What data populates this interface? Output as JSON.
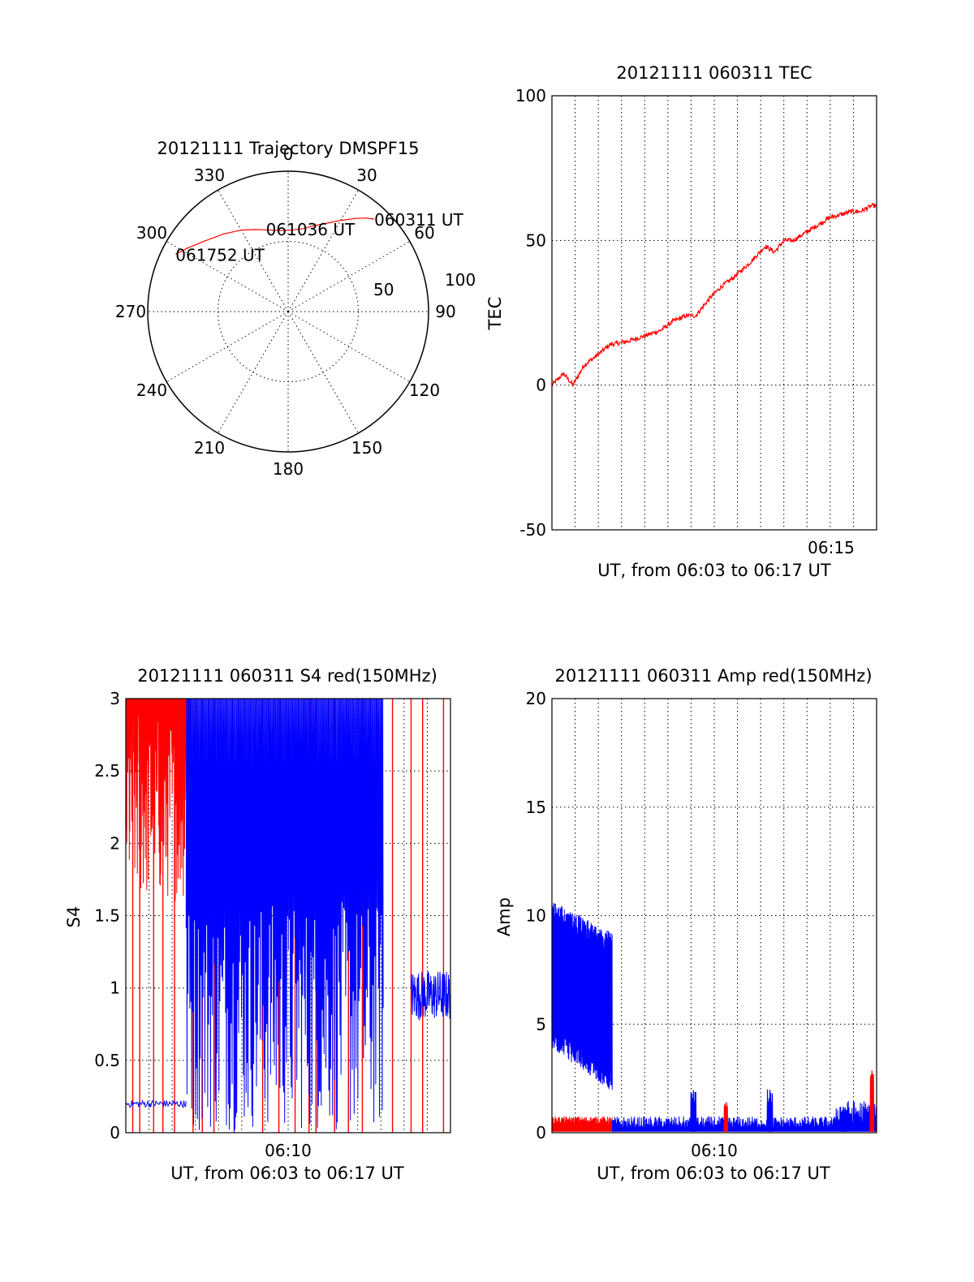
{
  "colors": {
    "red": "#ff0000",
    "blue": "#0000ff",
    "axis": "#000000",
    "grid": "#000000"
  },
  "chart_data": [
    {
      "type": "polar-trajectory",
      "title": "20121111 Trajectory DMSPF15",
      "angle_ticks": [
        "0",
        "30",
        "60",
        "90",
        "120",
        "150",
        "180",
        "210",
        "240",
        "270",
        "300",
        "330"
      ],
      "radius_ticks": [
        "50",
        "100"
      ],
      "series": [
        {
          "color": "red",
          "points": [
            [
              43,
              90
            ],
            [
              40,
              87
            ],
            [
              36,
              82
            ],
            [
              30,
              75
            ],
            [
              24,
              69
            ],
            [
              17,
              64
            ],
            [
              10,
              60
            ],
            [
              2,
              58
            ],
            [
              -6,
              58
            ],
            [
              -14,
              60
            ],
            [
              -22,
              63
            ],
            [
              -30,
              67
            ],
            [
              -40,
              72
            ],
            [
              -50,
              78
            ],
            [
              -58,
              85
            ],
            [
              -63,
              90
            ]
          ]
        }
      ],
      "annotations": [
        {
          "text": "060311 UT",
          "angle": 43,
          "r": 90
        },
        {
          "text": "061036 UT",
          "angle": -15,
          "r": 61
        },
        {
          "text": "061752 UT",
          "angle": -63,
          "r": 90
        }
      ]
    },
    {
      "type": "line",
      "title": "20121111 060311 TEC",
      "ylabel": "TEC",
      "xlabel": "UT, from 06:03 to 06:17 UT",
      "ylim": [
        -50,
        100
      ],
      "yticks": [
        "-50",
        "0",
        "50",
        "100"
      ],
      "xticks": [
        "06:15"
      ],
      "grid": true,
      "series": [
        {
          "color": "red",
          "x": [
            0.0,
            0.5,
            0.9,
            1.4,
            1.9,
            2.5,
            3.2,
            4.0,
            4.7,
            5.2,
            5.8,
            6.2,
            6.8,
            7.3,
            7.8,
            8.5,
            9.2,
            9.6,
            10.0,
            10.4,
            10.8,
            11.2,
            11.6,
            12.0,
            12.5,
            12.9,
            13.3,
            13.8,
            14.0
          ],
          "y": [
            0,
            4,
            0,
            7,
            10,
            14,
            15,
            17,
            19,
            22,
            24,
            24,
            30,
            34,
            37,
            42,
            48,
            46,
            50,
            50,
            52,
            54,
            56,
            58,
            59,
            60,
            60,
            62,
            62
          ]
        }
      ]
    },
    {
      "type": "line",
      "title": "20121111 060311 S4 red(150MHz)",
      "ylabel": "S4",
      "xlabel": "UT, from 06:03 to 06:17 UT",
      "ylim": [
        0,
        3
      ],
      "yticks": [
        "0",
        "0.5",
        "1",
        "1.5",
        "2",
        "2.5",
        "3"
      ],
      "xticks": [
        "06:10"
      ],
      "grid": true,
      "series": [
        {
          "color": "red",
          "region_x": [
            0.0,
            2.8
          ],
          "y_range": [
            1.6,
            3.0
          ]
        },
        {
          "color": "blue",
          "region_x": [
            2.6,
            11.1
          ],
          "y_range": [
            0.0,
            3.0
          ]
        },
        {
          "color": "blue",
          "baseline_x": [
            0.0,
            2.6
          ],
          "baseline_y": 0.2
        },
        {
          "color": "blue",
          "baseline_x": [
            12.3,
            14.0
          ],
          "baseline_y": 0.95
        }
      ]
    },
    {
      "type": "line",
      "title": "20121111 060311 Amp red(150MHz)",
      "ylabel": "Amp",
      "xlabel": "UT, from 06:03 to 06:17 UT",
      "ylim": [
        0,
        20
      ],
      "yticks": [
        "0",
        "5",
        "10",
        "15",
        "20"
      ],
      "xticks": [
        "06:10"
      ],
      "grid": true,
      "series": [
        {
          "color": "blue",
          "region_x": [
            0.0,
            2.6
          ],
          "y_range": [
            2.5,
            10.5
          ]
        },
        {
          "color": "red",
          "baseline_x": [
            0.0,
            2.6
          ],
          "baseline_y": 0.4
        },
        {
          "color": "blue",
          "baseline_x": [
            2.6,
            14.0
          ],
          "baseline_y": 0.5
        },
        {
          "color": "blue",
          "spikes": [
            [
              6.1,
              2.0
            ],
            [
              9.4,
              2.0
            ],
            [
              12.6,
              1.3
            ]
          ]
        },
        {
          "color": "red",
          "spikes": [
            [
              7.5,
              1.5
            ],
            [
              13.8,
              3.1
            ]
          ]
        }
      ]
    }
  ]
}
